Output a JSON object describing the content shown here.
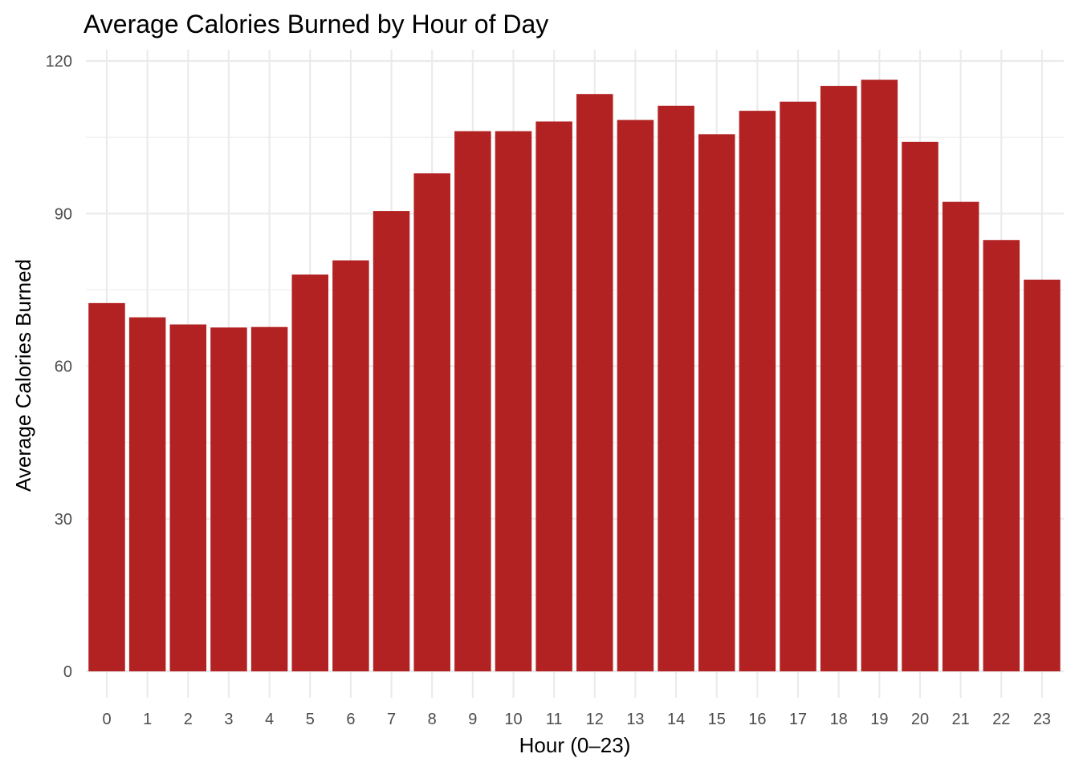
{
  "chart_data": {
    "type": "bar",
    "title": "Average Calories Burned by Hour of Day",
    "xlabel": "Hour (0–23)",
    "ylabel": "Average Calories Burned",
    "categories": [
      "0",
      "1",
      "2",
      "3",
      "4",
      "5",
      "6",
      "7",
      "8",
      "9",
      "10",
      "11",
      "12",
      "13",
      "14",
      "15",
      "16",
      "17",
      "18",
      "19",
      "20",
      "21",
      "22",
      "23"
    ],
    "values": [
      72.4,
      69.6,
      68.2,
      67.6,
      67.7,
      78.0,
      80.8,
      90.5,
      97.9,
      106.2,
      106.2,
      108.1,
      113.5,
      108.4,
      111.2,
      105.6,
      110.2,
      112.0,
      115.1,
      116.3,
      104.1,
      92.3,
      84.8,
      77.0
    ],
    "ylim": [
      0,
      120
    ],
    "yticks": [
      "0",
      "30",
      "60",
      "90",
      "120"
    ],
    "bar_color": "#b22222",
    "grid": true,
    "legend": "none"
  }
}
